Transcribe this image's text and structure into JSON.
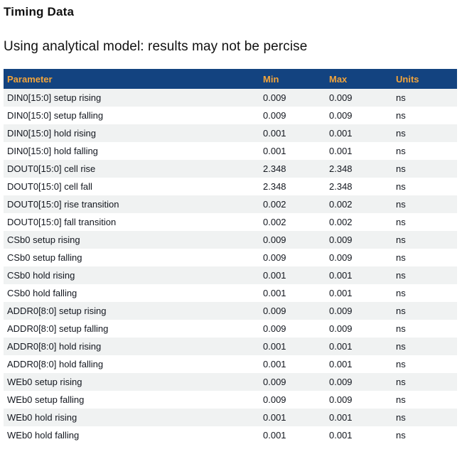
{
  "page": {
    "title": "Timing Data",
    "subtitle": "Using analytical model: results may not be percise"
  },
  "colors": {
    "header_bg": "#134380",
    "header_text": "#F2A43B",
    "row_alt_bg": "#F0F2F2",
    "row_bg": "#FFFFFF",
    "cell_text": "#13171F"
  },
  "table": {
    "columns": [
      "Parameter",
      "Min",
      "Max",
      "Units"
    ],
    "rows": [
      {
        "parameter": "DIN0[15:0] setup rising",
        "min": "0.009",
        "max": "0.009",
        "units": "ns"
      },
      {
        "parameter": "DIN0[15:0] setup falling",
        "min": "0.009",
        "max": "0.009",
        "units": "ns"
      },
      {
        "parameter": "DIN0[15:0] hold rising",
        "min": "0.001",
        "max": "0.001",
        "units": "ns"
      },
      {
        "parameter": "DIN0[15:0] hold falling",
        "min": "0.001",
        "max": "0.001",
        "units": "ns"
      },
      {
        "parameter": "DOUT0[15:0] cell rise",
        "min": "2.348",
        "max": "2.348",
        "units": "ns"
      },
      {
        "parameter": "DOUT0[15:0] cell fall",
        "min": "2.348",
        "max": "2.348",
        "units": "ns"
      },
      {
        "parameter": "DOUT0[15:0] rise transition",
        "min": "0.002",
        "max": "0.002",
        "units": "ns"
      },
      {
        "parameter": "DOUT0[15:0] fall transition",
        "min": "0.002",
        "max": "0.002",
        "units": "ns"
      },
      {
        "parameter": "CSb0 setup rising",
        "min": "0.009",
        "max": "0.009",
        "units": "ns"
      },
      {
        "parameter": "CSb0 setup falling",
        "min": "0.009",
        "max": "0.009",
        "units": "ns"
      },
      {
        "parameter": "CSb0 hold rising",
        "min": "0.001",
        "max": "0.001",
        "units": "ns"
      },
      {
        "parameter": "CSb0 hold falling",
        "min": "0.001",
        "max": "0.001",
        "units": "ns"
      },
      {
        "parameter": "ADDR0[8:0] setup rising",
        "min": "0.009",
        "max": "0.009",
        "units": "ns"
      },
      {
        "parameter": "ADDR0[8:0] setup falling",
        "min": "0.009",
        "max": "0.009",
        "units": "ns"
      },
      {
        "parameter": "ADDR0[8:0] hold rising",
        "min": "0.001",
        "max": "0.001",
        "units": "ns"
      },
      {
        "parameter": "ADDR0[8:0] hold falling",
        "min": "0.001",
        "max": "0.001",
        "units": "ns"
      },
      {
        "parameter": "WEb0 setup rising",
        "min": "0.009",
        "max": "0.009",
        "units": "ns"
      },
      {
        "parameter": "WEb0 setup falling",
        "min": "0.009",
        "max": "0.009",
        "units": "ns"
      },
      {
        "parameter": "WEb0 hold rising",
        "min": "0.001",
        "max": "0.001",
        "units": "ns"
      },
      {
        "parameter": "WEb0 hold falling",
        "min": "0.001",
        "max": "0.001",
        "units": "ns"
      }
    ]
  }
}
